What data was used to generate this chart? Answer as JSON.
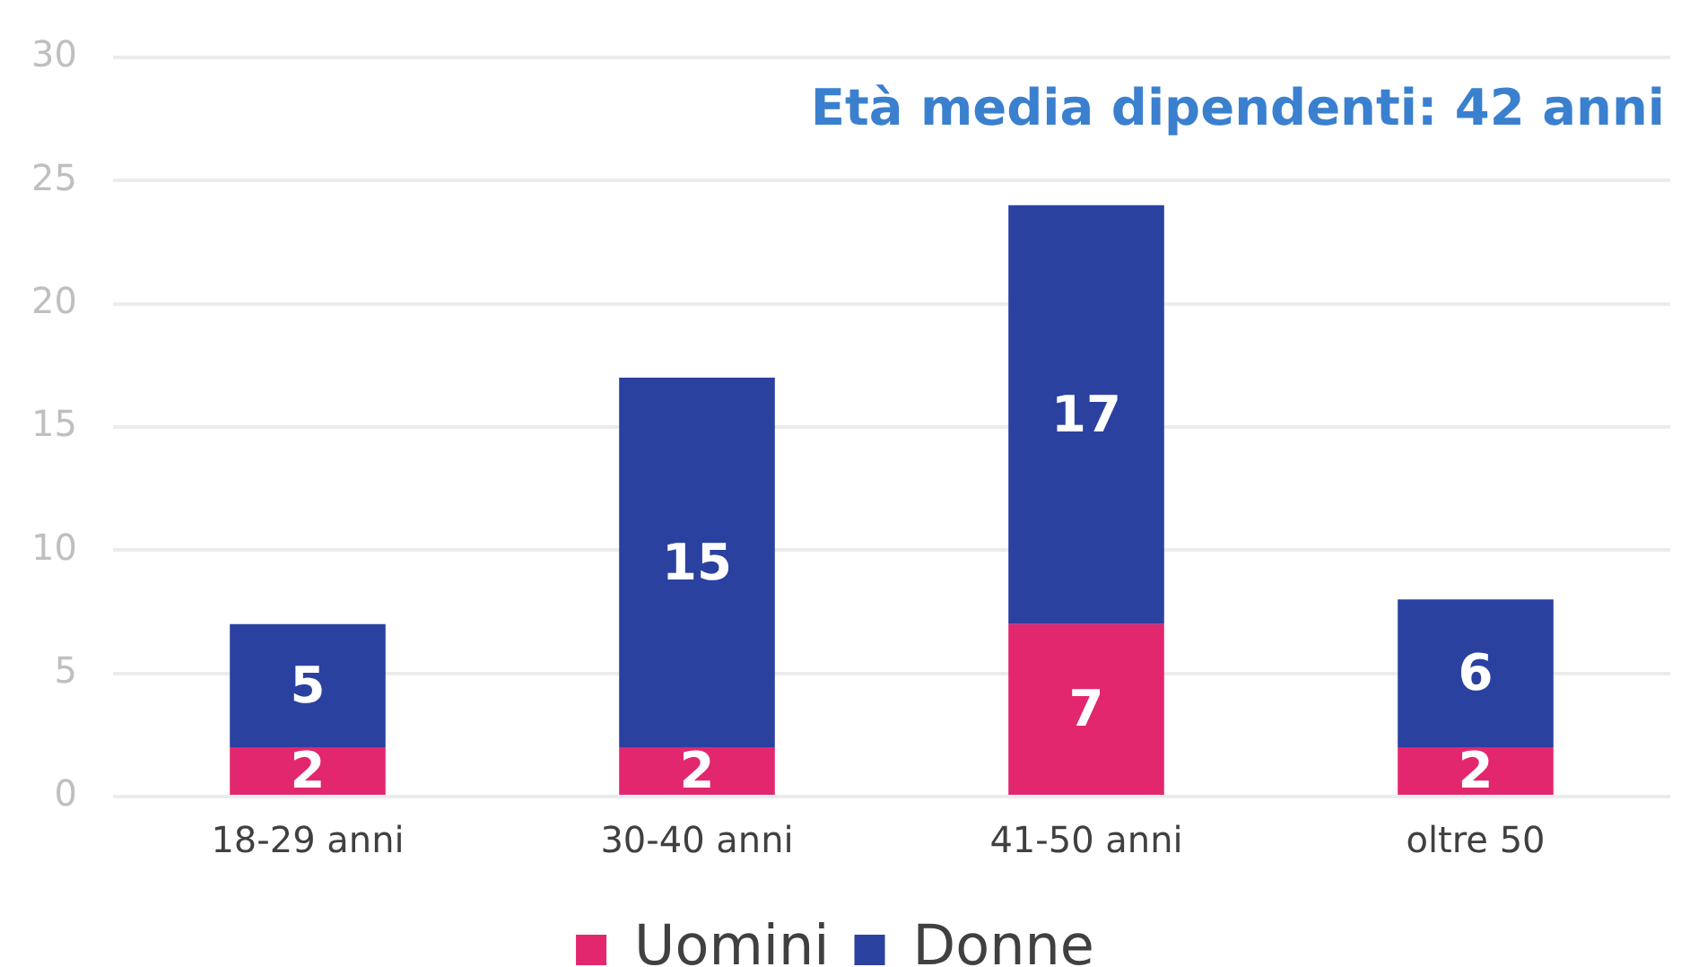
{
  "chart_data": {
    "type": "bar",
    "title": "Età media dipendenti: 42 anni",
    "categories": [
      "18-29 anni",
      "30-40 anni",
      "41-50 anni",
      "oltre 50"
    ],
    "series": [
      {
        "name": "Uomini",
        "color": "#e2276f",
        "values": [
          2,
          2,
          7,
          2
        ]
      },
      {
        "name": "Donne",
        "color": "#2b41a0",
        "values": [
          5,
          15,
          17,
          6
        ]
      }
    ],
    "stacked": true,
    "ylim": [
      0,
      30
    ],
    "yticks": [
      0,
      5,
      10,
      15,
      20,
      25,
      30
    ],
    "grid": "y",
    "legend": "bottom",
    "data_labels": true
  }
}
